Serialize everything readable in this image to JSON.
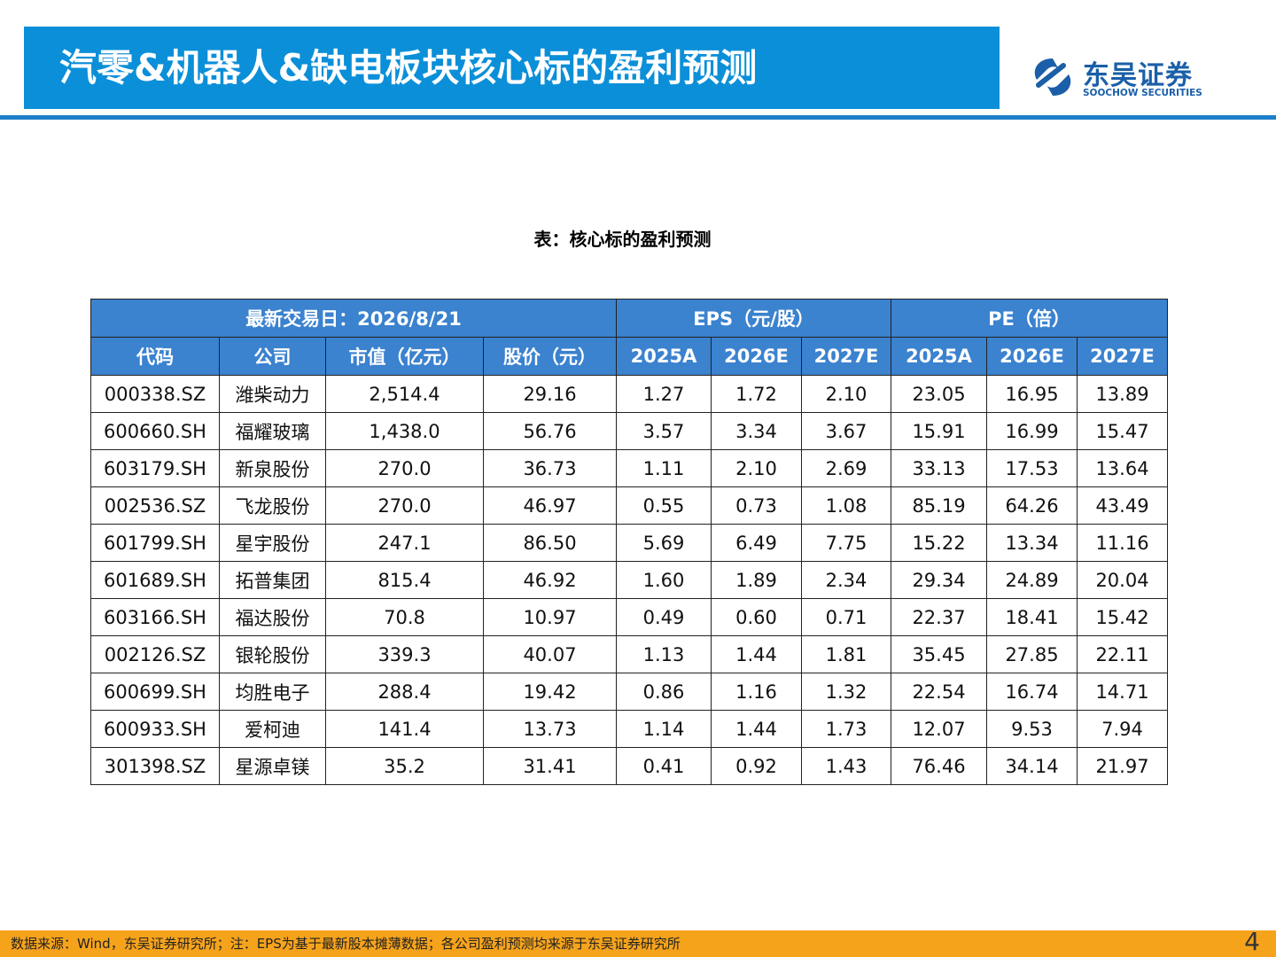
{
  "header": {
    "title": "汽零&机器人&缺电板块核心标的盈利预测",
    "logo_cn": "东吴证券",
    "logo_en": "SOOCHOW SECURITIES"
  },
  "table": {
    "caption": "表：核心标的盈利预测",
    "group_headers": [
      "最新交易日：2026/8/21",
      "EPS（元/股）",
      "PE（倍）"
    ],
    "columns": [
      "代码",
      "公司",
      "市值（亿元）",
      "股价（元）",
      "2025A",
      "2026E",
      "2027E",
      "2025A",
      "2026E",
      "2027E"
    ],
    "rows": [
      [
        "000338.SZ",
        "潍柴动力",
        "2,514.4",
        "29.16",
        "1.27",
        "1.72",
        "2.10",
        "23.05",
        "16.95",
        "13.89"
      ],
      [
        "600660.SH",
        "福耀玻璃",
        "1,438.0",
        "56.76",
        "3.57",
        "3.34",
        "3.67",
        "15.91",
        "16.99",
        "15.47"
      ],
      [
        "603179.SH",
        "新泉股份",
        "270.0",
        "36.73",
        "1.11",
        "2.10",
        "2.69",
        "33.13",
        "17.53",
        "13.64"
      ],
      [
        "002536.SZ",
        "飞龙股份",
        "270.0",
        "46.97",
        "0.55",
        "0.73",
        "1.08",
        "85.19",
        "64.26",
        "43.49"
      ],
      [
        "601799.SH",
        "星宇股份",
        "247.1",
        "86.50",
        "5.69",
        "6.49",
        "7.75",
        "15.22",
        "13.34",
        "11.16"
      ],
      [
        "601689.SH",
        "拓普集团",
        "815.4",
        "46.92",
        "1.60",
        "1.89",
        "2.34",
        "29.34",
        "24.89",
        "20.04"
      ],
      [
        "603166.SH",
        "福达股份",
        "70.8",
        "10.97",
        "0.49",
        "0.60",
        "0.71",
        "22.37",
        "18.41",
        "15.42"
      ],
      [
        "002126.SZ",
        "银轮股份",
        "339.3",
        "40.07",
        "1.13",
        "1.44",
        "1.81",
        "35.45",
        "27.85",
        "22.11"
      ],
      [
        "600699.SH",
        "均胜电子",
        "288.4",
        "19.42",
        "0.86",
        "1.16",
        "1.32",
        "22.54",
        "16.74",
        "14.71"
      ],
      [
        "600933.SH",
        "爱柯迪",
        "141.4",
        "13.73",
        "1.14",
        "1.44",
        "1.73",
        "12.07",
        "9.53",
        "7.94"
      ],
      [
        "301398.SZ",
        "星源卓镁",
        "35.2",
        "31.41",
        "0.41",
        "0.92",
        "1.43",
        "76.46",
        "34.14",
        "21.97"
      ]
    ]
  },
  "footer": {
    "source": "数据来源：Wind，东吴证券研究所；注：EPS为基于最新股本摊薄数据；各公司盈利预测均来源于东吴证券研究所",
    "page": "4"
  }
}
